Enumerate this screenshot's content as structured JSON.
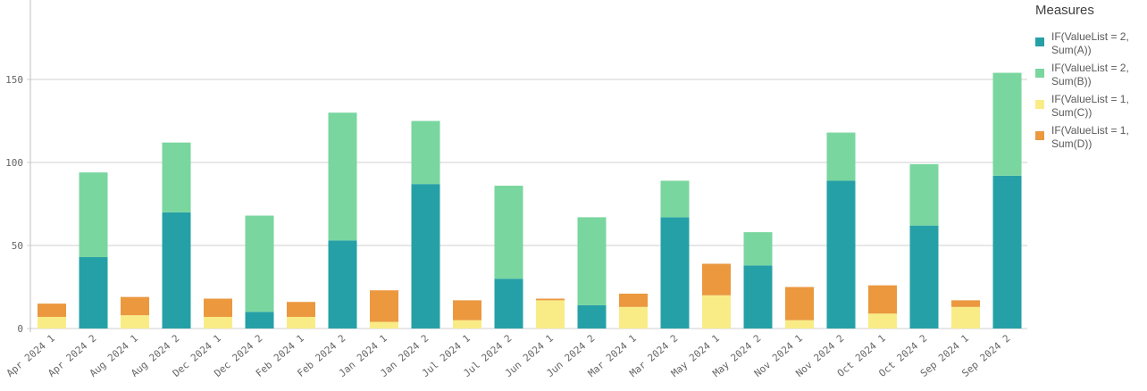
{
  "chart_data": {
    "type": "bar",
    "stacked": true,
    "categories": [
      "Apr 2024 1",
      "Apr 2024 2",
      "Aug 2024 1",
      "Aug 2024 2",
      "Dec 2024 1",
      "Dec 2024 2",
      "Feb 2024 1",
      "Feb 2024 2",
      "Jan 2024 1",
      "Jan 2024 2",
      "Jul 2024 1",
      "Jul 2024 2",
      "Jun 2024 1",
      "Jun 2024 2",
      "Mar 2024 1",
      "Mar 2024 2",
      "May 2024 1",
      "May 2024 2",
      "Nov 2024 1",
      "Nov 2024 2",
      "Oct 2024 1",
      "Oct 2024 2",
      "Sep 2024 1",
      "Sep 2024 2"
    ],
    "series": [
      {
        "name": "IF(ValueList = 2, Sum(A))",
        "color": "#26a0a7",
        "values": [
          0,
          43,
          0,
          70,
          0,
          10,
          0,
          53,
          0,
          87,
          0,
          30,
          0,
          14,
          0,
          67,
          0,
          38,
          0,
          89,
          0,
          62,
          0,
          92
        ]
      },
      {
        "name": "IF(ValueList = 2, Sum(B))",
        "color": "#79d69f",
        "values": [
          0,
          51,
          0,
          42,
          0,
          58,
          0,
          77,
          0,
          38,
          0,
          56,
          0,
          53,
          0,
          22,
          0,
          20,
          0,
          29,
          0,
          37,
          0,
          62
        ]
      },
      {
        "name": "IF(ValueList = 1, Sum(C))",
        "color": "#f9ec86",
        "values": [
          7,
          0,
          8,
          0,
          7,
          0,
          7,
          0,
          4,
          0,
          5,
          0,
          17,
          0,
          13,
          0,
          20,
          0,
          5,
          0,
          9,
          0,
          13,
          0
        ]
      },
      {
        "name": "IF(ValueList = 1, Sum(D))",
        "color": "#eb983f",
        "values": [
          8,
          0,
          11,
          0,
          11,
          0,
          9,
          0,
          19,
          0,
          12,
          0,
          1,
          0,
          8,
          0,
          19,
          0,
          20,
          0,
          17,
          0,
          4,
          0
        ]
      }
    ],
    "yticks": [
      "0",
      "50",
      "100",
      "150",
      "200"
    ],
    "ylim": [
      0,
      200
    ],
    "grid": true,
    "legend_title": "Measures",
    "legend_position": "right"
  }
}
